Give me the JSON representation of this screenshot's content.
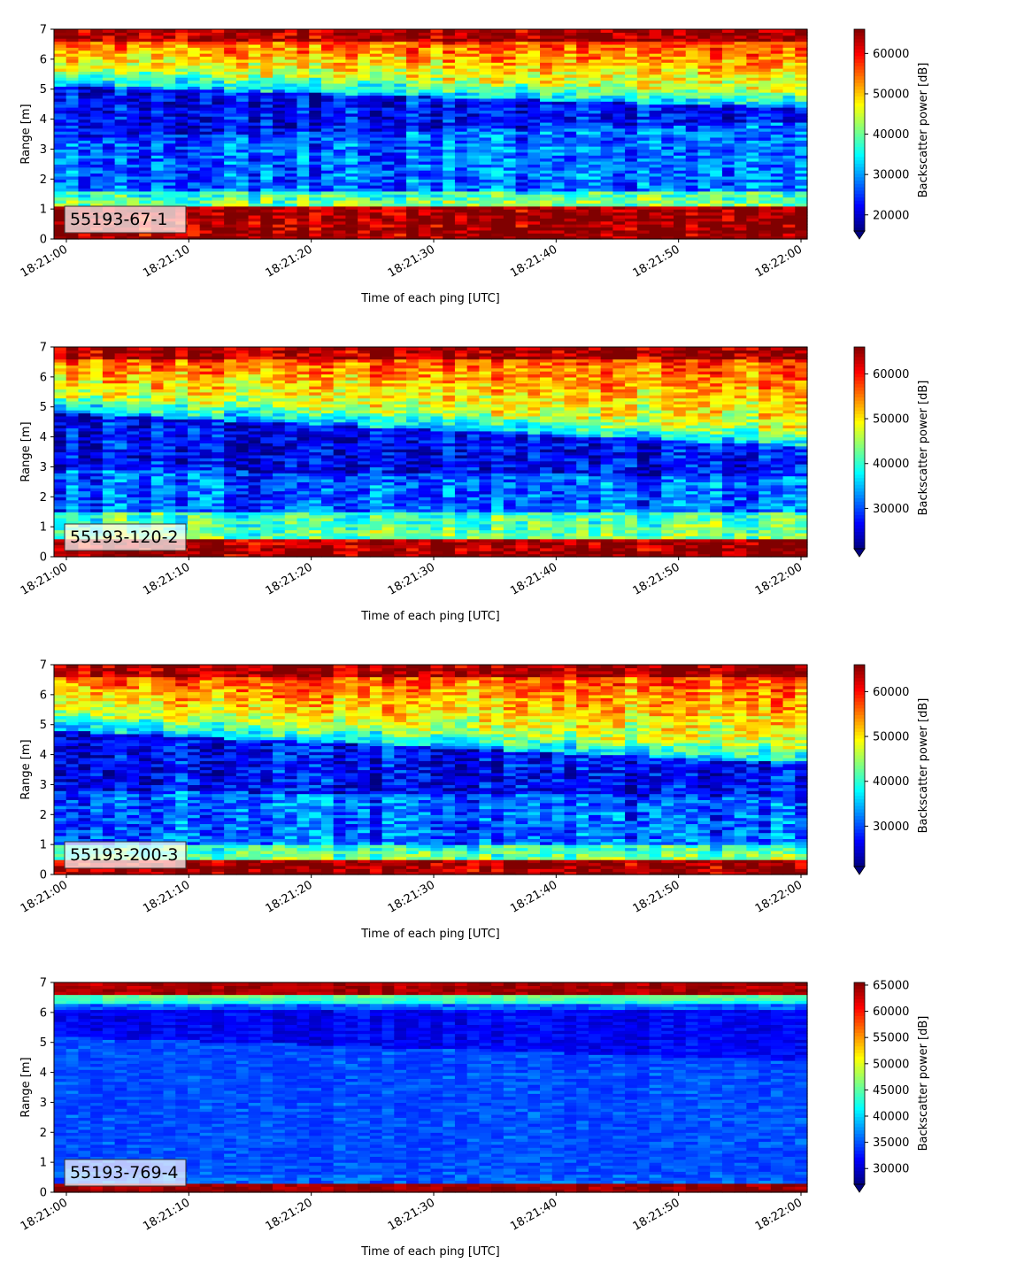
{
  "chart_data": [
    {
      "type": "heatmap",
      "label": "55193-67-1",
      "xlabel": "Time of each ping [UTC]",
      "ylabel": "Range [m]",
      "x_ticks": [
        "18:21:00",
        "18:21:10",
        "18:21:20",
        "18:21:30",
        "18:21:40",
        "18:21:50",
        "18:22:00"
      ],
      "xlim": [
        "18:21:00",
        "18:22:00"
      ],
      "y_ticks": [
        0,
        1,
        2,
        3,
        4,
        5,
        6,
        7
      ],
      "ylim": [
        0,
        7
      ],
      "colorbar": {
        "label": "Backscatter power [dB]",
        "range": [
          16000,
          66000
        ],
        "ticks": [
          20000,
          30000,
          40000,
          50000,
          60000
        ],
        "extend": "min",
        "colormap": "jet"
      },
      "structure": {
        "bottom_max": 1.1,
        "lower_cyan": 1.6,
        "trough_start": 4.0,
        "trough_end": 4.5,
        "upper_start": 5.6,
        "upper_end": 4.9,
        "fluct": 1.0
      }
    },
    {
      "type": "heatmap",
      "label": "55193-120-2",
      "xlabel": "Time of each ping [UTC]",
      "ylabel": "Range [m]",
      "x_ticks": [
        "18:21:00",
        "18:21:10",
        "18:21:20",
        "18:21:30",
        "18:21:40",
        "18:21:50",
        "18:22:00"
      ],
      "xlim": [
        "18:21:00",
        "18:22:00"
      ],
      "y_ticks": [
        0,
        1,
        2,
        3,
        4,
        5,
        6,
        7
      ],
      "ylim": [
        0,
        7
      ],
      "colorbar": {
        "label": "Backscatter power [dB]",
        "range": [
          21000,
          66000
        ],
        "ticks": [
          30000,
          40000,
          50000,
          60000
        ],
        "extend": "min",
        "colormap": "jet"
      },
      "structure": {
        "bottom_max": 0.6,
        "lower_cyan": 1.5,
        "trough_start": 3.5,
        "trough_end": 3.3,
        "upper_start": 5.3,
        "upper_end": 4.2,
        "fluct": 1.0
      }
    },
    {
      "type": "heatmap",
      "label": "55193-200-3",
      "xlabel": "Time of each ping [UTC]",
      "ylabel": "Range [m]",
      "x_ticks": [
        "18:21:00",
        "18:21:10",
        "18:21:20",
        "18:21:30",
        "18:21:40",
        "18:21:50",
        "18:22:00"
      ],
      "xlim": [
        "18:21:00",
        "18:22:00"
      ],
      "y_ticks": [
        0,
        1,
        2,
        3,
        4,
        5,
        6,
        7
      ],
      "ylim": [
        0,
        7
      ],
      "colorbar": {
        "label": "Backscatter power [dB]",
        "range": [
          21000,
          66000
        ],
        "ticks": [
          30000,
          40000,
          50000,
          60000
        ],
        "extend": "min",
        "colormap": "jet"
      },
      "structure": {
        "bottom_max": 0.5,
        "lower_cyan": 1.0,
        "trough_start": 3.4,
        "trough_end": 3.2,
        "upper_start": 5.3,
        "upper_end": 4.2,
        "fluct": 1.0
      }
    },
    {
      "type": "heatmap",
      "label": "55193-769-4",
      "xlabel": "Time of each ping [UTC]",
      "ylabel": "Range [m]",
      "x_ticks": [
        "18:21:00",
        "18:21:10",
        "18:21:20",
        "18:21:30",
        "18:21:40",
        "18:21:50",
        "18:22:00"
      ],
      "xlim": [
        "18:21:00",
        "18:22:00"
      ],
      "y_ticks": [
        0,
        1,
        2,
        3,
        4,
        5,
        6,
        7
      ],
      "ylim": [
        0,
        7
      ],
      "colorbar": {
        "label": "Backscatter power [dB]",
        "range": [
          27000,
          65500
        ],
        "ticks": [
          30000,
          35000,
          40000,
          45000,
          50000,
          55000,
          60000,
          65000
        ],
        "extend": "min",
        "colormap": "jet"
      },
      "structure": {
        "bottom_max": 0.35,
        "lower_cyan": 0.6,
        "trough_start": 5.8,
        "trough_end": 5.0,
        "upper_start": 6.6,
        "upper_end": 6.6,
        "fluct": 0.4
      }
    }
  ]
}
